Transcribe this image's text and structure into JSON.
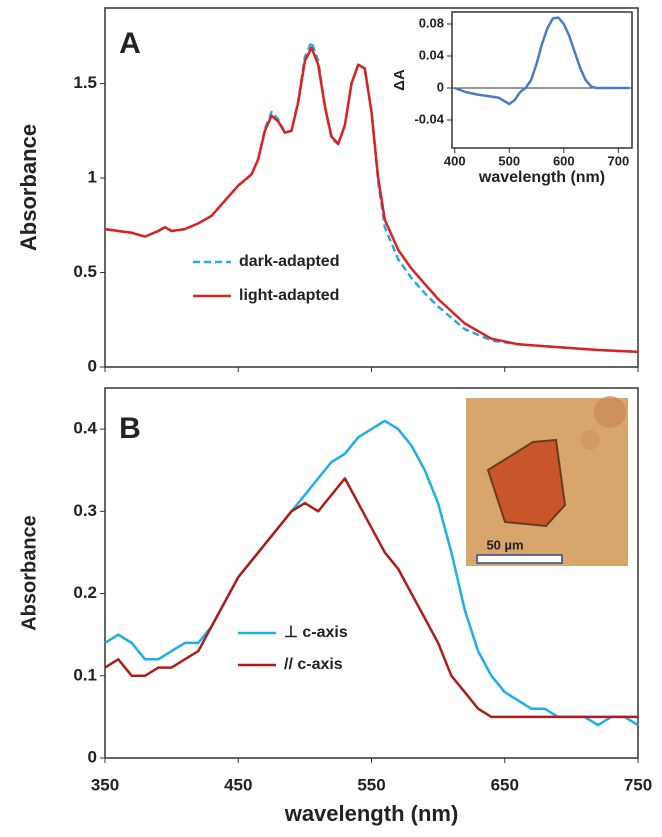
{
  "chart_data": [
    {
      "type": "line",
      "label": "A",
      "ylabel": "Absorbance",
      "xlim": [
        350,
        750
      ],
      "xticks": [
        350,
        450,
        550,
        650,
        750
      ],
      "show_xtick_labels": false,
      "ylim": [
        0,
        1.9
      ],
      "yticks": [
        0,
        0.5,
        1,
        1.5
      ],
      "legend": "lower left",
      "x": [
        350,
        360,
        370,
        380,
        390,
        395,
        400,
        410,
        420,
        430,
        440,
        450,
        460,
        465,
        470,
        475,
        480,
        485,
        490,
        495,
        500,
        505,
        510,
        515,
        520,
        525,
        530,
        535,
        540,
        545,
        550,
        555,
        560,
        570,
        580,
        590,
        600,
        620,
        640,
        660,
        680,
        700,
        720,
        750
      ],
      "series": [
        {
          "name": "dark-adapted",
          "color": "#29a8e0",
          "dashed": true,
          "values": [
            0.73,
            0.72,
            0.71,
            0.69,
            0.72,
            0.74,
            0.72,
            0.73,
            0.76,
            0.8,
            0.88,
            0.96,
            1.02,
            1.1,
            1.26,
            1.35,
            1.31,
            1.24,
            1.25,
            1.41,
            1.64,
            1.72,
            1.62,
            1.38,
            1.21,
            1.18,
            1.28,
            1.5,
            1.6,
            1.58,
            1.35,
            0.98,
            0.74,
            0.57,
            0.47,
            0.39,
            0.32,
            0.2,
            0.14,
            0.12,
            0.11,
            0.1,
            0.09,
            0.08
          ]
        },
        {
          "name": "light-adapted",
          "color": "#e02020",
          "dashed": false,
          "values": [
            0.73,
            0.72,
            0.71,
            0.69,
            0.72,
            0.74,
            0.72,
            0.73,
            0.76,
            0.8,
            0.88,
            0.96,
            1.02,
            1.1,
            1.25,
            1.33,
            1.3,
            1.24,
            1.25,
            1.4,
            1.62,
            1.69,
            1.6,
            1.38,
            1.22,
            1.18,
            1.28,
            1.5,
            1.6,
            1.58,
            1.35,
            1.0,
            0.78,
            0.62,
            0.52,
            0.44,
            0.36,
            0.23,
            0.15,
            0.12,
            0.11,
            0.1,
            0.09,
            0.08
          ]
        }
      ]
    },
    {
      "type": "line",
      "xlabel": "wavelength (nm)",
      "ylabel": "ΔA",
      "xlim": [
        395,
        725
      ],
      "xticks": [
        400,
        500,
        600,
        700
      ],
      "show_xtick_labels": true,
      "ylim": [
        -0.075,
        0.095
      ],
      "yticks": [
        -0.04,
        0,
        0.04,
        0.08
      ],
      "x": [
        400,
        420,
        440,
        460,
        480,
        500,
        510,
        520,
        530,
        540,
        550,
        560,
        570,
        580,
        590,
        600,
        610,
        620,
        630,
        640,
        650,
        660,
        680,
        700,
        720
      ],
      "series": [
        {
          "color": "#4a7cc0",
          "dashed": false,
          "values": [
            0,
            -0.005,
            -0.008,
            -0.01,
            -0.012,
            -0.02,
            -0.015,
            -0.005,
            0,
            0.01,
            0.03,
            0.055,
            0.075,
            0.087,
            0.088,
            0.08,
            0.065,
            0.045,
            0.025,
            0.01,
            0.002,
            0,
            0,
            0,
            0
          ]
        }
      ]
    },
    {
      "type": "line",
      "label": "B",
      "xlabel": "wavelength (nm)",
      "ylabel": "Absorbance",
      "annotation": "50 µm",
      "xlim": [
        350,
        750
      ],
      "xticks": [
        350,
        450,
        550,
        650,
        750
      ],
      "show_xtick_labels": true,
      "ylim": [
        0,
        0.45
      ],
      "yticks": [
        0,
        0.1,
        0.2,
        0.3,
        0.4
      ],
      "legend": "lower left",
      "x": [
        350,
        360,
        370,
        380,
        390,
        400,
        410,
        420,
        430,
        440,
        450,
        460,
        470,
        480,
        490,
        500,
        510,
        520,
        530,
        540,
        550,
        560,
        570,
        580,
        590,
        600,
        610,
        620,
        630,
        640,
        650,
        660,
        670,
        680,
        690,
        700,
        710,
        720,
        730,
        740,
        750
      ],
      "series": [
        {
          "name": "⊥ c-axis",
          "color": "#1ab0e8",
          "dashed": false,
          "values": [
            0.14,
            0.15,
            0.14,
            0.12,
            0.12,
            0.13,
            0.14,
            0.14,
            0.16,
            0.19,
            0.22,
            0.24,
            0.26,
            0.28,
            0.3,
            0.32,
            0.34,
            0.36,
            0.37,
            0.39,
            0.4,
            0.41,
            0.4,
            0.38,
            0.35,
            0.31,
            0.25,
            0.18,
            0.13,
            0.1,
            0.08,
            0.07,
            0.06,
            0.06,
            0.05,
            0.05,
            0.05,
            0.04,
            0.05,
            0.05,
            0.04
          ]
        },
        {
          "name": "// c-axis",
          "color": "#b01c1c",
          "dashed": false,
          "values": [
            0.11,
            0.12,
            0.1,
            0.1,
            0.11,
            0.11,
            0.12,
            0.13,
            0.16,
            0.19,
            0.22,
            0.24,
            0.26,
            0.28,
            0.3,
            0.31,
            0.3,
            0.32,
            0.34,
            0.31,
            0.28,
            0.25,
            0.23,
            0.2,
            0.17,
            0.14,
            0.1,
            0.08,
            0.06,
            0.05,
            0.05,
            0.05,
            0.05,
            0.05,
            0.05,
            0.05,
            0.05,
            0.05,
            0.05,
            0.05,
            0.05
          ]
        }
      ]
    }
  ]
}
